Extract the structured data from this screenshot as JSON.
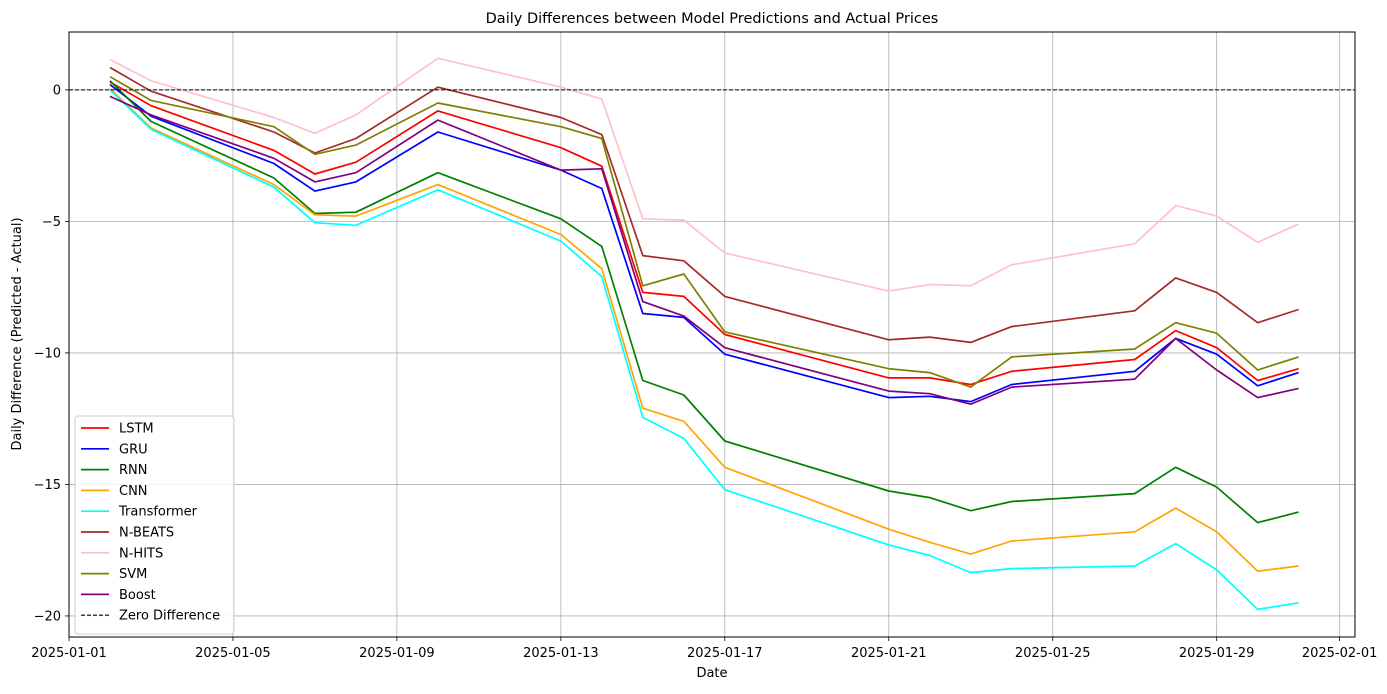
{
  "chart_data": {
    "type": "line",
    "title": "Daily Differences between Model Predictions and Actual Prices",
    "xlabel": "Date",
    "ylabel": "Daily Difference (Predicted - Actual)",
    "x_range": [
      "2025-01-01T00:00:00",
      "2025-02-01T09:00:00"
    ],
    "ylim": [
      -20.8,
      2.2
    ],
    "x_ticks": [
      "2025-01-01",
      "2025-01-05",
      "2025-01-09",
      "2025-01-13",
      "2025-01-17",
      "2025-01-21",
      "2025-01-25",
      "2025-01-29",
      "2025-02-01"
    ],
    "x_tick_labels": [
      "2025-01-01",
      "2025-01-05",
      "2025-01-09",
      "2025-01-13",
      "2025-01-17",
      "2025-01-21",
      "2025-01-25",
      "2025-01-29",
      "2025-02-01"
    ],
    "y_ticks": [
      0,
      -5,
      -10,
      -15,
      -20
    ],
    "y_tick_labels": [
      "0",
      "−5",
      "−10",
      "−15",
      "−20"
    ],
    "grid": true,
    "legend_position": "lower-left",
    "dates": [
      "2025-01-02",
      "2025-01-03",
      "2025-01-06",
      "2025-01-07",
      "2025-01-08",
      "2025-01-10",
      "2025-01-13",
      "2025-01-14",
      "2025-01-15",
      "2025-01-16",
      "2025-01-17",
      "2025-01-21",
      "2025-01-22",
      "2025-01-23",
      "2025-01-24",
      "2025-01-27",
      "2025-01-28",
      "2025-01-29",
      "2025-01-30",
      "2025-01-31"
    ],
    "series": [
      {
        "name": "LSTM",
        "color": "#ff0000",
        "values": [
          0.3,
          -0.6,
          -2.3,
          -3.2,
          -2.75,
          -0.8,
          -2.2,
          -2.9,
          -7.7,
          -7.85,
          -9.3,
          -10.95,
          -10.95,
          -11.2,
          -10.7,
          -10.25,
          -9.15,
          -9.8,
          -11.05,
          -10.6
        ]
      },
      {
        "name": "GRU",
        "color": "#0000ff",
        "values": [
          0.2,
          -1.0,
          -2.8,
          -3.85,
          -3.5,
          -1.6,
          -3.05,
          -3.75,
          -8.5,
          -8.65,
          -10.05,
          -11.7,
          -11.65,
          -11.85,
          -11.2,
          -10.7,
          -9.45,
          -10.05,
          -11.25,
          -10.75
        ]
      },
      {
        "name": "RNN",
        "color": "#008000",
        "values": [
          0.35,
          -1.2,
          -3.35,
          -4.7,
          -4.65,
          -3.15,
          -4.9,
          -5.95,
          -11.05,
          -11.6,
          -13.35,
          -15.25,
          -15.5,
          -16.0,
          -15.65,
          -15.35,
          -14.35,
          -15.1,
          -16.45,
          -16.05
        ]
      },
      {
        "name": "CNN",
        "color": "#ffa500",
        "values": [
          0.05,
          -1.45,
          -3.6,
          -4.75,
          -4.8,
          -3.6,
          -5.5,
          -6.8,
          -12.1,
          -12.6,
          -14.35,
          -16.7,
          -17.2,
          -17.65,
          -17.15,
          -16.8,
          -15.9,
          -16.8,
          -18.3,
          -18.1
        ]
      },
      {
        "name": "Transformer",
        "color": "#00ffff",
        "values": [
          0.0,
          -1.5,
          -3.7,
          -5.05,
          -5.15,
          -3.8,
          -5.75,
          -7.1,
          -12.45,
          -13.25,
          -15.2,
          -17.3,
          -17.7,
          -18.35,
          -18.2,
          -18.1,
          -17.25,
          -18.25,
          -19.75,
          -19.5
        ]
      },
      {
        "name": "N-BEATS",
        "color": "#a52a2a",
        "values": [
          0.85,
          -0.05,
          -1.6,
          -2.4,
          -1.85,
          0.1,
          -1.05,
          -1.7,
          -6.3,
          -6.5,
          -7.85,
          -9.5,
          -9.4,
          -9.6,
          -9.0,
          -8.4,
          -7.15,
          -7.7,
          -8.85,
          -8.35
        ]
      },
      {
        "name": "N-HITS",
        "color": "#ffc0cb",
        "values": [
          1.15,
          0.35,
          -1.05,
          -1.65,
          -0.95,
          1.2,
          0.1,
          -0.35,
          -4.9,
          -4.95,
          -6.2,
          -7.65,
          -7.4,
          -7.45,
          -6.65,
          -5.85,
          -4.4,
          -4.8,
          -5.8,
          -5.1
        ]
      },
      {
        "name": "SVM",
        "color": "#808000",
        "values": [
          0.5,
          -0.4,
          -1.4,
          -2.45,
          -2.1,
          -0.5,
          -1.4,
          -1.85,
          -7.45,
          -7.0,
          -9.2,
          -10.6,
          -10.75,
          -11.3,
          -10.15,
          -9.85,
          -8.85,
          -9.25,
          -10.65,
          -10.15
        ]
      },
      {
        "name": "Boost",
        "color": "#800080",
        "values": [
          -0.25,
          -0.95,
          -2.6,
          -3.5,
          -3.15,
          -1.15,
          -3.05,
          -3.0,
          -8.05,
          -8.6,
          -9.8,
          -11.45,
          -11.55,
          -11.95,
          -11.3,
          -11.0,
          -9.45,
          -10.65,
          -11.7,
          -11.35
        ]
      }
    ],
    "reference_line": {
      "name": "Zero Difference",
      "y": 0,
      "color": "#000000",
      "style": "dashed"
    }
  }
}
